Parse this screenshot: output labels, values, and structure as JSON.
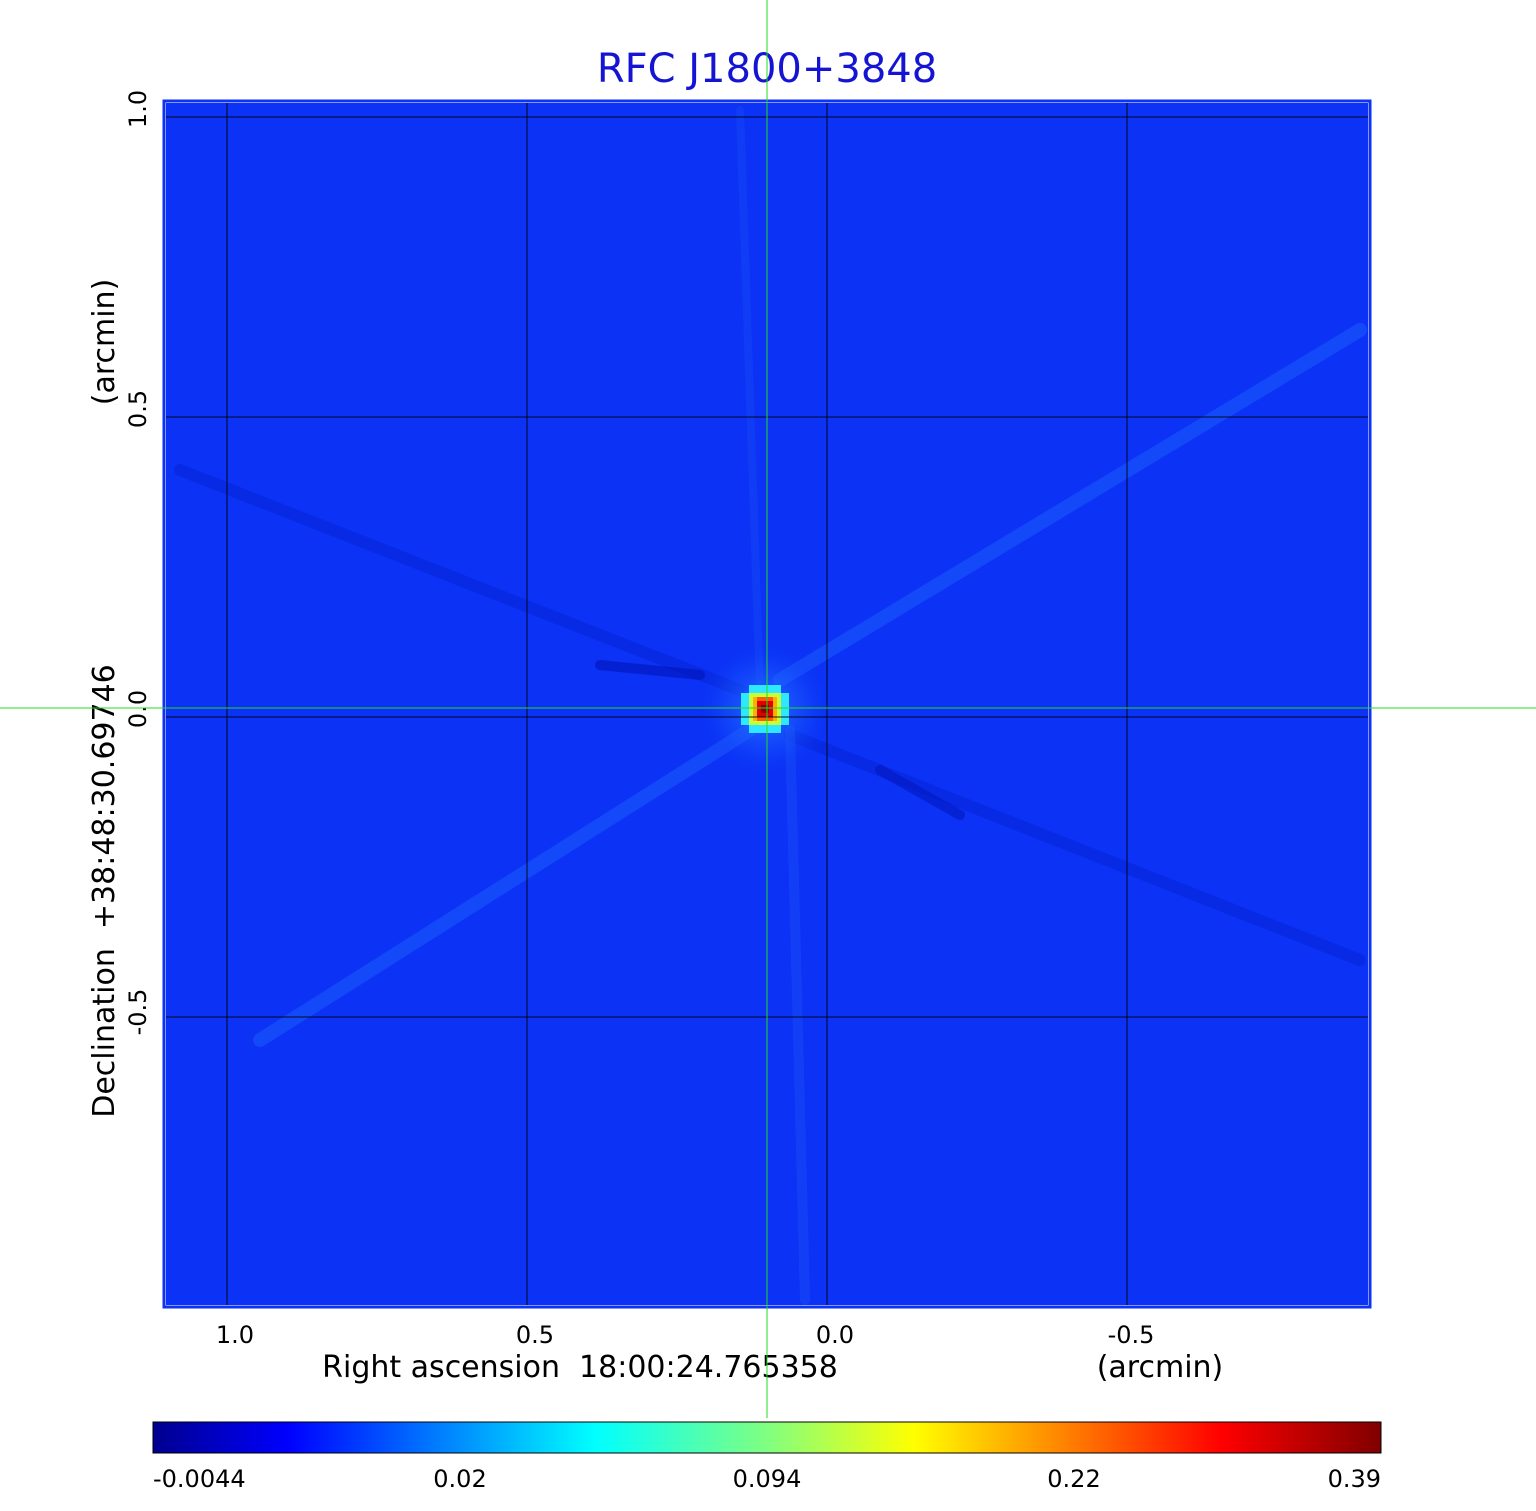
{
  "title": "RFC J1800+3848",
  "x_axis": {
    "label": "Right ascension  18:00:24.765358",
    "unit": "(arcmin)",
    "ticks": [
      "1.0",
      "0.5",
      "0.0",
      "-0.5"
    ]
  },
  "y_axis": {
    "label": "Declination  +38:48:30.69746",
    "unit": "(arcmin)",
    "ticks": [
      "1.0",
      "0.5",
      "0.0",
      "-0.5"
    ]
  },
  "colorbar": {
    "ticks": [
      "-0.0044",
      "0.02",
      "0.094",
      "0.22",
      "0.39"
    ],
    "colormap": "jet"
  },
  "colors": {
    "title": "#1414d2",
    "background_field": "#0b32f5",
    "crosshair": "#22dd22"
  }
}
